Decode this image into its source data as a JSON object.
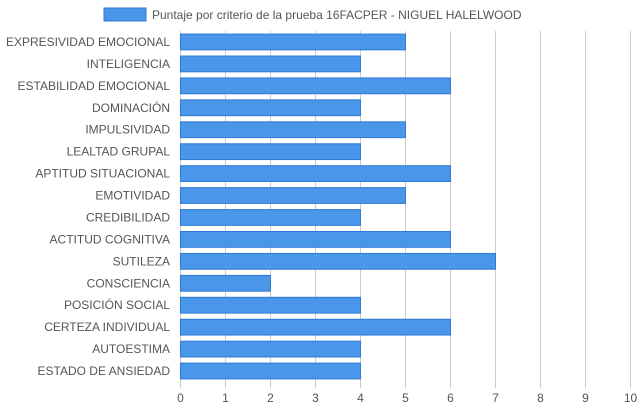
{
  "chart_data": {
    "type": "bar",
    "orientation": "horizontal",
    "categories": [
      "EXPRESIVIDAD EMOCIONAL",
      "INTELIGENCIA",
      "ESTABILIDAD EMOCIONAL",
      "DOMINACIÓN",
      "IMPULSIVIDAD",
      "LEALTAD GRUPAL",
      "APTITUD SITUACIONAL",
      "EMOTIVIDAD",
      "CREDIBILIDAD",
      "ACTITUD COGNITIVA",
      "SUTILEZA",
      "CONSCIENCIA",
      "POSICIÓN SOCIAL",
      "CERTEZA INDIVIDUAL",
      "AUTOESTIMA",
      "ESTADO DE ANSIEDAD"
    ],
    "series": [
      {
        "name": "Puntaje por criterio de la prueba 16FACPER - NIGUEL HALELWOOD",
        "values": [
          5,
          4,
          6,
          4,
          5,
          4,
          6,
          5,
          4,
          6,
          7,
          2,
          4,
          6,
          4,
          4
        ],
        "color": "#4a96e8",
        "border_color": "#2e7ad6"
      }
    ],
    "xlim": [
      0,
      10
    ],
    "x_ticks": [
      "0",
      "1",
      "2",
      "3",
      "4",
      "5",
      "6",
      "7",
      "8",
      "9",
      "10"
    ],
    "grid": true,
    "legend_position": "top"
  }
}
